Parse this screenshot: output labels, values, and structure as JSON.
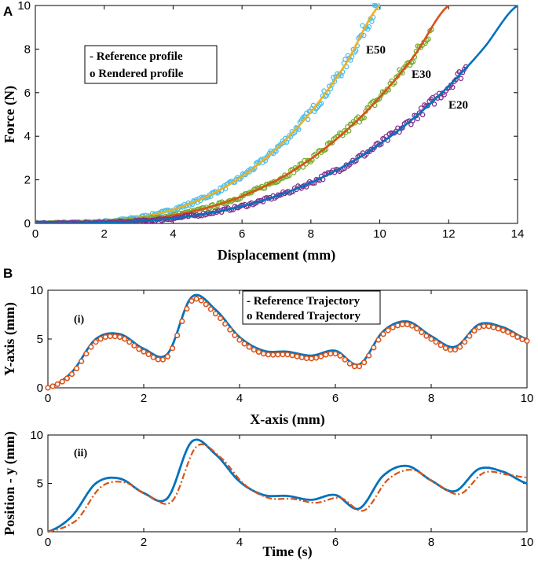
{
  "chart_data": [
    {
      "panel": "A",
      "type": "line",
      "xlabel": "Displacement (mm)",
      "ylabel": "Force (N)",
      "xlim": [
        0,
        14
      ],
      "ylim": [
        0,
        10
      ],
      "xticks": [
        0,
        2,
        4,
        6,
        8,
        10,
        12,
        14
      ],
      "yticks": [
        0,
        2,
        4,
        6,
        8,
        10
      ],
      "legend": {
        "position": "top-left",
        "entries": [
          "-  Reference profile",
          "o  Rendered profile"
        ]
      },
      "series": [
        {
          "name": "E50",
          "reference_color": "#EDB120",
          "rendered_color": "#4DBEEE",
          "x": [
            0,
            1,
            2,
            3,
            4,
            5,
            6,
            7,
            8,
            9,
            10
          ],
          "y": [
            0,
            0.01,
            0.08,
            0.27,
            0.64,
            1.25,
            2.16,
            3.43,
            5.12,
            7.29,
            10.0
          ],
          "rendered_x_max": 10
        },
        {
          "name": "E30",
          "reference_color": "#D95319",
          "rendered_color": "#77AC30",
          "x": [
            0,
            1,
            2,
            3,
            4,
            5,
            6,
            7,
            8,
            9,
            10,
            11,
            12
          ],
          "y": [
            0,
            0.01,
            0.05,
            0.16,
            0.37,
            0.72,
            1.25,
            1.98,
            2.96,
            4.22,
            5.79,
            7.7,
            10.0
          ],
          "rendered_x_max": 11.5
        },
        {
          "name": "E20",
          "reference_color": "#0072BD",
          "rendered_color": "#7E2F8E",
          "x": [
            0,
            1,
            2,
            3,
            4,
            5,
            6,
            7,
            8,
            9,
            10,
            11,
            12,
            13,
            14
          ],
          "y": [
            0,
            0.0,
            0.03,
            0.1,
            0.23,
            0.46,
            0.79,
            1.25,
            1.87,
            2.66,
            3.64,
            4.85,
            6.3,
            8.01,
            10.0
          ],
          "rendered_x_max": 12.5
        }
      ]
    },
    {
      "panel": "B(i)",
      "type": "line",
      "tag": "(i)",
      "xlabel": "X-axis (mm)",
      "ylabel": "Y-axis (mm)",
      "xlim": [
        0,
        10
      ],
      "ylim": [
        0,
        10
      ],
      "xticks": [
        0,
        2,
        4,
        6,
        8,
        10
      ],
      "yticks": [
        0,
        5,
        10
      ],
      "legend": {
        "position": "top-right",
        "entries": [
          "- Reference Trajectory",
          "o Rendered Trajectory"
        ]
      },
      "series": [
        {
          "name": "Reference Trajectory",
          "color": "#0072BD",
          "x": [
            0,
            0.5,
            1.0,
            1.5,
            2.0,
            2.5,
            3.0,
            3.5,
            4.0,
            4.5,
            5.0,
            5.5,
            6.0,
            6.5,
            7.0,
            7.5,
            8.0,
            8.5,
            9.0,
            9.5,
            10.0
          ],
          "y": [
            0,
            1.6,
            5.0,
            5.5,
            4.0,
            3.5,
            9.3,
            8.0,
            5.2,
            3.8,
            3.7,
            3.3,
            3.8,
            2.4,
            5.8,
            6.8,
            5.3,
            4.2,
            6.5,
            6.2,
            5.0
          ]
        },
        {
          "name": "Rendered Trajectory",
          "color": "#D95319",
          "x": [
            0,
            0.5,
            1.0,
            1.5,
            2.0,
            2.5,
            3.0,
            3.5,
            4.0,
            4.5,
            5.0,
            5.5,
            6.0,
            6.5,
            7.0,
            7.5,
            8.0,
            8.5,
            9.0,
            9.5,
            10.0
          ],
          "y": [
            0,
            1.4,
            4.7,
            5.2,
            3.7,
            3.2,
            8.9,
            7.6,
            4.9,
            3.5,
            3.4,
            3.0,
            3.5,
            2.2,
            5.5,
            6.5,
            5.0,
            3.9,
            6.2,
            5.9,
            4.8
          ]
        }
      ]
    },
    {
      "panel": "B(ii)",
      "type": "line",
      "tag": "(ii)",
      "xlabel": "Time (s)",
      "ylabel": "Position - y (mm)",
      "xlim": [
        0,
        10
      ],
      "ylim": [
        0,
        10
      ],
      "xticks": [
        0,
        2,
        4,
        6,
        8,
        10
      ],
      "yticks": [
        0,
        5,
        10
      ],
      "series": [
        {
          "name": "Reference",
          "color": "#0072BD",
          "style": "solid",
          "x": [
            0,
            0.5,
            1.0,
            1.5,
            2.0,
            2.5,
            3.0,
            3.5,
            4.0,
            4.5,
            5.0,
            5.5,
            6.0,
            6.5,
            7.0,
            7.5,
            8.0,
            8.5,
            9.0,
            9.5,
            10.0
          ],
          "y": [
            0,
            1.6,
            5.0,
            5.5,
            4.0,
            3.5,
            9.3,
            8.0,
            5.2,
            3.8,
            3.7,
            3.3,
            3.8,
            2.4,
            5.8,
            6.8,
            5.3,
            4.2,
            6.5,
            6.2,
            5.0
          ]
        },
        {
          "name": "Rendered",
          "color": "#D95319",
          "style": "dash-dot",
          "x": [
            0,
            0.6,
            1.1,
            1.6,
            2.1,
            2.6,
            3.1,
            3.6,
            4.1,
            4.6,
            5.1,
            5.6,
            6.1,
            6.6,
            7.1,
            7.6,
            8.1,
            8.6,
            9.1,
            9.6,
            10.0
          ],
          "y": [
            0,
            1.2,
            4.6,
            5.1,
            3.7,
            3.2,
            8.8,
            7.7,
            4.9,
            3.5,
            3.4,
            3.0,
            3.5,
            2.2,
            5.4,
            6.4,
            5.0,
            3.9,
            6.1,
            5.9,
            5.6
          ]
        }
      ]
    }
  ],
  "panel_letters": {
    "a": "A",
    "b": "B"
  }
}
